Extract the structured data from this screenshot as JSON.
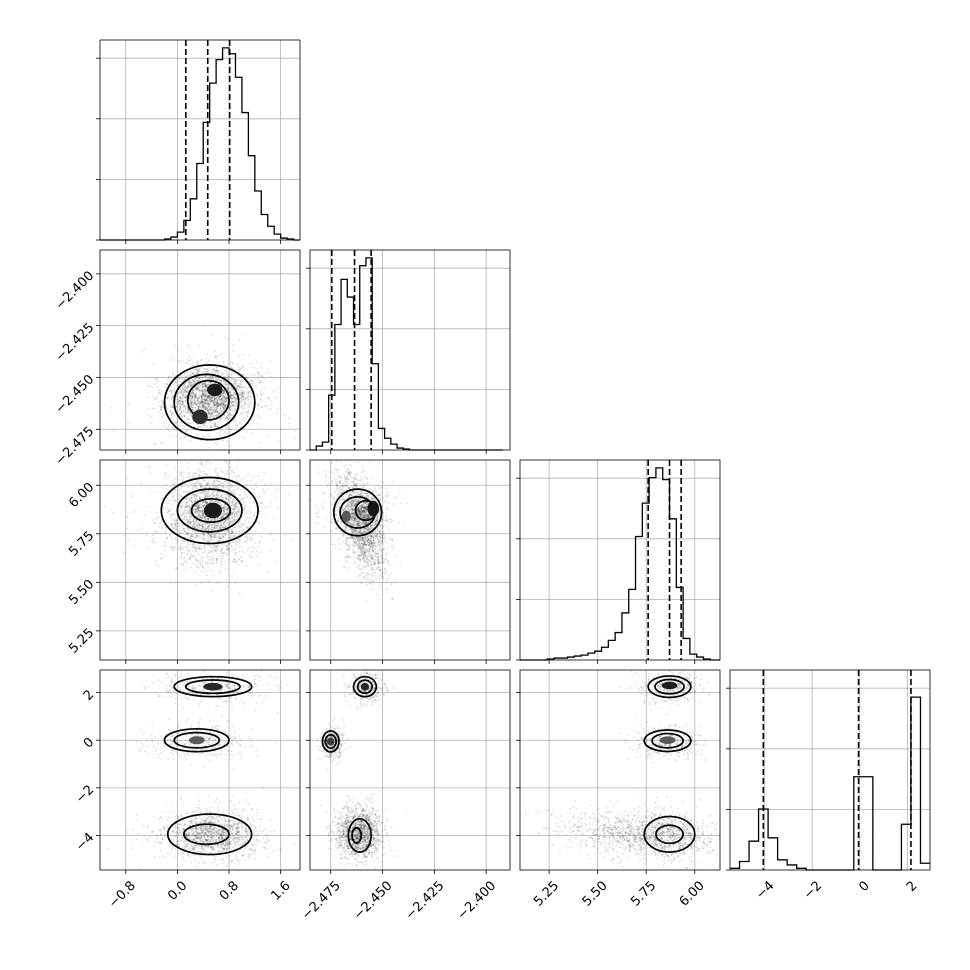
{
  "chart_data": {
    "type": "corner",
    "parameters": [
      {
        "range": [
          -1.2,
          1.9
        ],
        "ticks": [
          -0.8,
          0.0,
          0.8,
          1.6
        ],
        "tick_labels": [
          "−0.8",
          "0.0",
          "0.8",
          "1.6"
        ]
      },
      {
        "range": [
          -2.485,
          -2.3885
        ],
        "ticks": [
          -2.475,
          -2.45,
          -2.425,
          -2.4
        ],
        "tick_labels": [
          "−2.475",
          "−2.450",
          "−2.425",
          "−2.400"
        ]
      },
      {
        "range": [
          5.1,
          6.13
        ],
        "ticks": [
          5.25,
          5.5,
          5.75,
          6.0
        ],
        "tick_labels": [
          "5.25",
          "5.50",
          "5.75",
          "6.00"
        ]
      },
      {
        "range": [
          -5.45,
          2.95
        ],
        "ticks": [
          -4,
          -2,
          0,
          2
        ],
        "tick_labels": [
          "−4",
          "−2",
          "0",
          "2"
        ]
      }
    ],
    "histograms": [
      {
        "param": 0,
        "edges": [
          -1.2,
          -1.1,
          -1.0,
          -0.9,
          -0.8,
          -0.7,
          -0.6,
          -0.5,
          -0.4,
          -0.3,
          -0.2,
          -0.1,
          0.0,
          0.1,
          0.2,
          0.3,
          0.4,
          0.5,
          0.6,
          0.7,
          0.8,
          0.9,
          1.0,
          1.1,
          1.2,
          1.3,
          1.4,
          1.5,
          1.6,
          1.7,
          1.8,
          1.9
        ],
        "counts": [
          0,
          0,
          0,
          0,
          0,
          0,
          0,
          0,
          0,
          0,
          0.5,
          1.5,
          4,
          10,
          21,
          39,
          60,
          80,
          92,
          98,
          95,
          83,
          65,
          43,
          25,
          13,
          7,
          3,
          1,
          0.5,
          0
        ],
        "quantiles": [
          0.13,
          0.47,
          0.81
        ],
        "ymax": 102
      },
      {
        "param": 1,
        "edges": [
          -2.485,
          -2.482,
          -2.479,
          -2.476,
          -2.473,
          -2.47,
          -2.467,
          -2.464,
          -2.461,
          -2.458,
          -2.455,
          -2.452,
          -2.449,
          -2.446,
          -2.443,
          -2.44,
          -2.437,
          -2.434,
          -2.431,
          -2.428,
          -2.425,
          -2.422,
          -2.419,
          -2.416,
          -2.413,
          -2.41,
          -2.407,
          -2.404,
          -2.401,
          -2.398,
          -2.395,
          -2.392
        ],
        "counts": [
          0,
          2,
          4,
          28,
          64,
          87,
          78,
          64,
          94,
          98,
          44,
          11,
          6,
          3,
          1,
          0.5,
          0,
          0,
          0,
          0,
          0,
          0,
          0,
          0,
          0,
          0,
          0,
          0,
          0,
          0,
          0
        ],
        "quantiles": [
          -2.4745,
          -2.4635,
          -2.4555
        ],
        "ymax": 102
      },
      {
        "param": 2,
        "edges": [
          5.1,
          5.135,
          5.17,
          5.205,
          5.24,
          5.275,
          5.31,
          5.345,
          5.38,
          5.415,
          5.45,
          5.485,
          5.52,
          5.555,
          5.59,
          5.625,
          5.66,
          5.695,
          5.73,
          5.765,
          5.8,
          5.835,
          5.87,
          5.905,
          5.94,
          5.975,
          6.01,
          6.045,
          6.08,
          6.115,
          6.13
        ],
        "counts": [
          0,
          0,
          0,
          0,
          0.5,
          1,
          1,
          1.5,
          2,
          2.5,
          3.5,
          4.5,
          6.5,
          10,
          14,
          24,
          36,
          63,
          80,
          93,
          98,
          92,
          72,
          37,
          11,
          3,
          1.5,
          0.5,
          0,
          0
        ],
        "quantiles": [
          5.76,
          5.87,
          5.93
        ],
        "ymax": 102
      },
      {
        "param": 3,
        "edges": [
          -5.45,
          -5.05,
          -4.65,
          -4.25,
          -3.85,
          -3.45,
          -3.05,
          -2.65,
          -2.25,
          -1.85,
          -1.45,
          -1.05,
          -0.65,
          -0.25,
          0.15,
          0.55,
          0.95,
          1.35,
          1.75,
          2.15,
          2.55,
          2.95
        ],
        "counts": [
          1,
          5,
          17,
          36,
          19,
          6,
          3,
          1,
          0,
          0,
          0,
          0,
          0,
          55,
          55,
          0,
          0,
          0,
          27,
          102,
          4
        ],
        "quantiles": [
          -4.05,
          -0.05,
          2.15
        ],
        "ymax": 118
      }
    ],
    "pairs": [
      {
        "x": 0,
        "y": 1,
        "cloud": {
          "cx": 0.5,
          "cy": -2.458,
          "sx": 0.34,
          "sy": 0.0068,
          "rho": 0.1,
          "n": 1600,
          "seed": 11
        },
        "blobs": [
          {
            "x": 0.58,
            "y": -2.456,
            "rx": 0.12,
            "ry": 0.003,
            "fill": "#1c1c1c"
          },
          {
            "x": 0.35,
            "y": -2.469,
            "rx": 0.12,
            "ry": 0.0035,
            "fill": "#2e2e2e"
          }
        ],
        "contours": [
          {
            "cx": 0.5,
            "cy": -2.462,
            "rx": 0.7,
            "ry": 0.018,
            "fill": "#ececec"
          },
          {
            "cx": 0.45,
            "cy": -2.462,
            "rx": 0.5,
            "ry": 0.0135,
            "fill": "#cfcfcf"
          },
          {
            "cx": 0.48,
            "cy": -2.461,
            "rx": 0.32,
            "ry": 0.0095,
            "fill": "#a0a0a0"
          }
        ]
      },
      {
        "x": 0,
        "y": 2,
        "cloud": {
          "cx": 0.5,
          "cy": 5.83,
          "sx": 0.34,
          "sy": 0.13,
          "rho": 0.0,
          "n": 1600,
          "seed": 21
        },
        "blobs": [
          {
            "x": 0.55,
            "y": 5.87,
            "rx": 0.14,
            "ry": 0.04,
            "fill": "#1a1a1a"
          }
        ],
        "contours": [
          {
            "cx": 0.5,
            "cy": 5.87,
            "rx": 0.75,
            "ry": 0.17,
            "fill": "#ececec"
          },
          {
            "cx": 0.5,
            "cy": 5.87,
            "rx": 0.5,
            "ry": 0.11,
            "fill": "#c8c8c8"
          },
          {
            "cx": 0.52,
            "cy": 5.87,
            "rx": 0.3,
            "ry": 0.06,
            "fill": "#8c8c8c"
          }
        ]
      },
      {
        "x": 1,
        "y": 2,
        "cloud": {
          "cx": -2.461,
          "cy": 5.8,
          "sx": 0.006,
          "sy": 0.13,
          "rho": -0.55,
          "n": 1600,
          "seed": 31
        },
        "blobs": [
          {
            "x": -2.4545,
            "y": 5.88,
            "rx": 0.0028,
            "ry": 0.04,
            "fill": "#161616"
          },
          {
            "x": -2.4675,
            "y": 5.84,
            "rx": 0.0022,
            "ry": 0.03,
            "fill": "#5a5a5a"
          }
        ],
        "contours": [
          {
            "cx": -2.462,
            "cy": 5.86,
            "rx": 0.0115,
            "ry": 0.12,
            "fill": "#ececec"
          },
          {
            "cx": -2.462,
            "cy": 5.86,
            "rx": 0.0085,
            "ry": 0.08,
            "fill": "#c6c6c6"
          },
          {
            "cx": -2.458,
            "cy": 5.87,
            "rx": 0.005,
            "ry": 0.05,
            "fill": "#8a8a8a"
          }
        ]
      },
      {
        "x": 0,
        "y": 3,
        "cloud": {
          "cx": 0.5,
          "cy": -3.9,
          "sx": 0.34,
          "sy": 0.45,
          "rho": 0.0,
          "n": 1000,
          "seed": 41
        },
        "blobs": [
          {
            "x": 0.55,
            "y": 2.25,
            "rx": 0.15,
            "ry": 0.16,
            "fill": "#262626"
          },
          {
            "x": 0.3,
            "y": 0.0,
            "rx": 0.12,
            "ry": 0.17,
            "fill": "#5a5a5a"
          }
        ],
        "contours": [
          {
            "cx": 0.55,
            "cy": 2.25,
            "rx": 0.6,
            "ry": 0.42,
            "fill": "#ececec"
          },
          {
            "cx": 0.55,
            "cy": 2.25,
            "rx": 0.42,
            "ry": 0.28,
            "fill": "#c8c8c8"
          },
          {
            "cx": 0.3,
            "cy": 0.0,
            "rx": 0.5,
            "ry": 0.48,
            "fill": "#ececec"
          },
          {
            "cx": 0.3,
            "cy": 0.0,
            "rx": 0.35,
            "ry": 0.32,
            "fill": "#c0c0c0"
          },
          {
            "cx": 0.5,
            "cy": -3.95,
            "rx": 0.65,
            "ry": 0.85,
            "fill": "#f2f2f2"
          },
          {
            "cx": 0.45,
            "cy": -3.95,
            "rx": 0.35,
            "ry": 0.42,
            "fill": "#f8f8f8"
          }
        ]
      },
      {
        "x": 1,
        "y": 3,
        "cloud": {
          "cx": -2.462,
          "cy": -3.8,
          "sx": 0.006,
          "sy": 0.55,
          "rho": 0.0,
          "n": 1000,
          "seed": 51
        },
        "blobs": [
          {
            "x": -2.4585,
            "y": 2.25,
            "rx": 0.002,
            "ry": 0.16,
            "fill": "#262626"
          },
          {
            "x": -2.475,
            "y": -0.05,
            "rx": 0.0018,
            "ry": 0.16,
            "fill": "#3a3a3a"
          }
        ],
        "contours": [
          {
            "cx": -2.4585,
            "cy": 2.25,
            "rx": 0.0055,
            "ry": 0.42,
            "fill": "#ececec"
          },
          {
            "cx": -2.4585,
            "cy": 2.25,
            "rx": 0.0035,
            "ry": 0.27,
            "fill": "#c8c8c8"
          },
          {
            "cx": -2.475,
            "cy": -0.05,
            "rx": 0.004,
            "ry": 0.44,
            "fill": "#ececec"
          },
          {
            "cx": -2.475,
            "cy": -0.05,
            "rx": 0.0026,
            "ry": 0.28,
            "fill": "#bdbdbd"
          },
          {
            "cx": -2.461,
            "cy": -4.0,
            "rx": 0.0055,
            "ry": 0.7,
            "fill": "#f2f2f2"
          },
          {
            "cx": -2.4625,
            "cy": -4.0,
            "rx": 0.0022,
            "ry": 0.32,
            "fill": "#f8f8f8"
          }
        ]
      },
      {
        "x": 2,
        "y": 3,
        "cloud": {
          "cx": 5.7,
          "cy": -3.9,
          "sx": 0.2,
          "sy": 0.5,
          "rho": -0.25,
          "n": 1000,
          "seed": 61
        },
        "blobs": [
          {
            "x": 5.87,
            "y": 2.3,
            "rx": 0.04,
            "ry": 0.16,
            "fill": "#1e1e1e"
          },
          {
            "x": 5.86,
            "y": 0.0,
            "rx": 0.04,
            "ry": 0.16,
            "fill": "#5a5a5a"
          }
        ],
        "contours": [
          {
            "cx": 5.87,
            "cy": 2.25,
            "rx": 0.11,
            "ry": 0.45,
            "fill": "#ececec"
          },
          {
            "cx": 5.87,
            "cy": 2.25,
            "rx": 0.075,
            "ry": 0.3,
            "fill": "#c8c8c8"
          },
          {
            "cx": 5.86,
            "cy": -0.02,
            "rx": 0.12,
            "ry": 0.45,
            "fill": "#ececec"
          },
          {
            "cx": 5.86,
            "cy": -0.02,
            "rx": 0.08,
            "ry": 0.3,
            "fill": "#c0c0c0"
          },
          {
            "cx": 5.87,
            "cy": -3.95,
            "rx": 0.13,
            "ry": 0.75,
            "fill": "#f2f2f2"
          },
          {
            "cx": 5.87,
            "cy": -3.95,
            "rx": 0.07,
            "ry": 0.38,
            "fill": "#f8f8f8"
          }
        ]
      }
    ],
    "grid": true,
    "xlabels": [],
    "ylabels": []
  }
}
